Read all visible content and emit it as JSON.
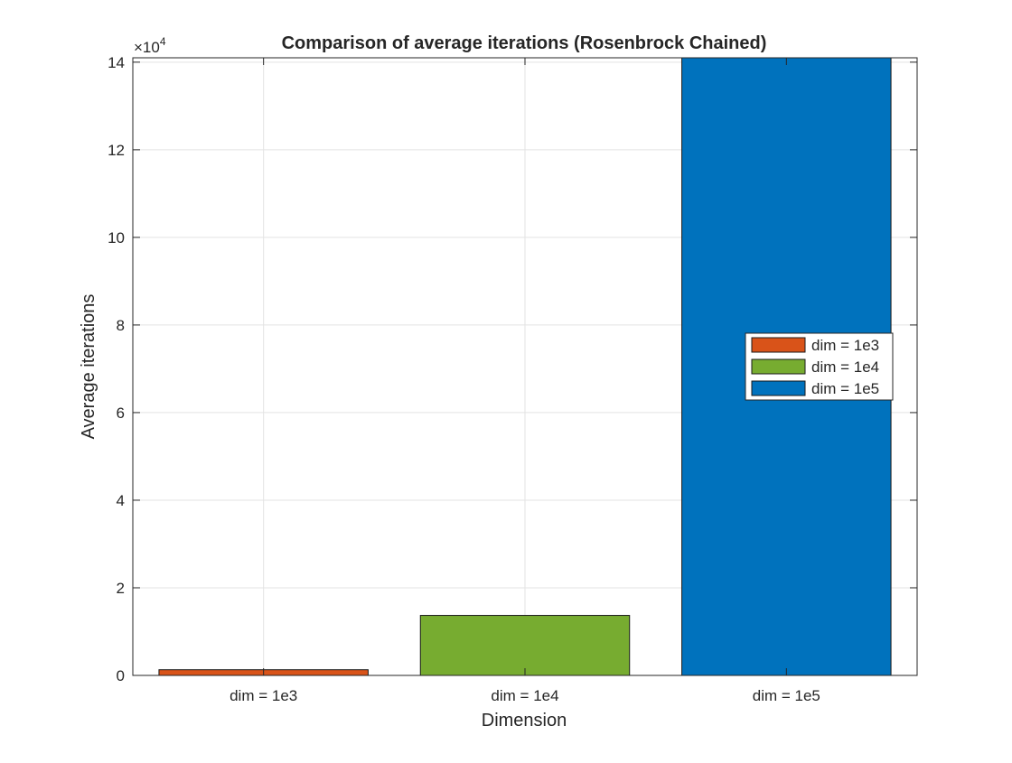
{
  "chart_data": {
    "type": "bar",
    "title": "Comparison of average iterations (Rosenbrock Chained)",
    "xlabel": "Dimension",
    "ylabel": "Average iterations",
    "categories": [
      "dim = 1e3",
      "dim = 1e4",
      "dim = 1e5"
    ],
    "series": [
      {
        "name": "dim = 1e3",
        "values": [
          1300,
          null,
          null
        ],
        "color": "#D95319"
      },
      {
        "name": "dim = 1e4",
        "values": [
          null,
          13700,
          null
        ],
        "color": "#77AC30"
      },
      {
        "name": "dim = 1e5",
        "values": [
          null,
          null,
          141000
        ],
        "color": "#0072BD"
      }
    ],
    "ylim": [
      0,
      141000
    ],
    "yticks": [
      0,
      20000,
      40000,
      60000,
      80000,
      100000,
      120000,
      140000
    ],
    "ytick_labels": [
      "0",
      "2",
      "4",
      "6",
      "8",
      "10",
      "12",
      "14"
    ],
    "y_exponent_label": "×10",
    "y_exponent_power": "4",
    "grid": true,
    "legend": {
      "position": "right",
      "entries": [
        "dim = 1e3",
        "dim = 1e4",
        "dim = 1e5"
      ]
    }
  }
}
